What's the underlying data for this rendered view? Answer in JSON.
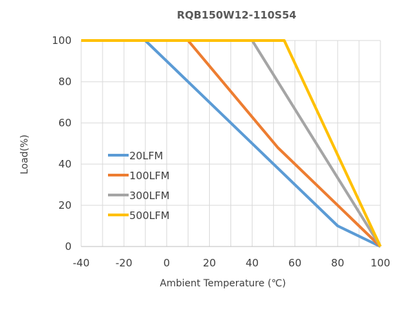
{
  "chart_data": {
    "type": "line",
    "title": "RQB150W12-110S54",
    "xlabel": "Ambient Temperature (℃)",
    "ylabel": "Load(%)",
    "xlim": [
      -40,
      100
    ],
    "ylim": [
      0,
      100
    ],
    "xticks": [
      "-40",
      "-20",
      "0",
      "20",
      "40",
      "60",
      "80",
      "100"
    ],
    "yticks": [
      "0",
      "20",
      "40",
      "60",
      "80",
      "100"
    ],
    "grid": true,
    "legend_position": "left-middle",
    "series": [
      {
        "name": "20LFM",
        "color": "#5B9BD5",
        "points": [
          [
            -40,
            100
          ],
          [
            -10,
            100
          ],
          [
            80,
            10
          ],
          [
            100,
            0
          ]
        ]
      },
      {
        "name": "100LFM",
        "color": "#ED7D31",
        "points": [
          [
            -40,
            100
          ],
          [
            10,
            100
          ],
          [
            52,
            48
          ],
          [
            100,
            0
          ]
        ]
      },
      {
        "name": "300LFM",
        "color": "#A5A5A5",
        "points": [
          [
            -40,
            100
          ],
          [
            40,
            100
          ],
          [
            100,
            0
          ]
        ]
      },
      {
        "name": "500LFM",
        "color": "#FFC000",
        "points": [
          [
            -40,
            100
          ],
          [
            55,
            100
          ],
          [
            100,
            0
          ]
        ]
      }
    ]
  }
}
